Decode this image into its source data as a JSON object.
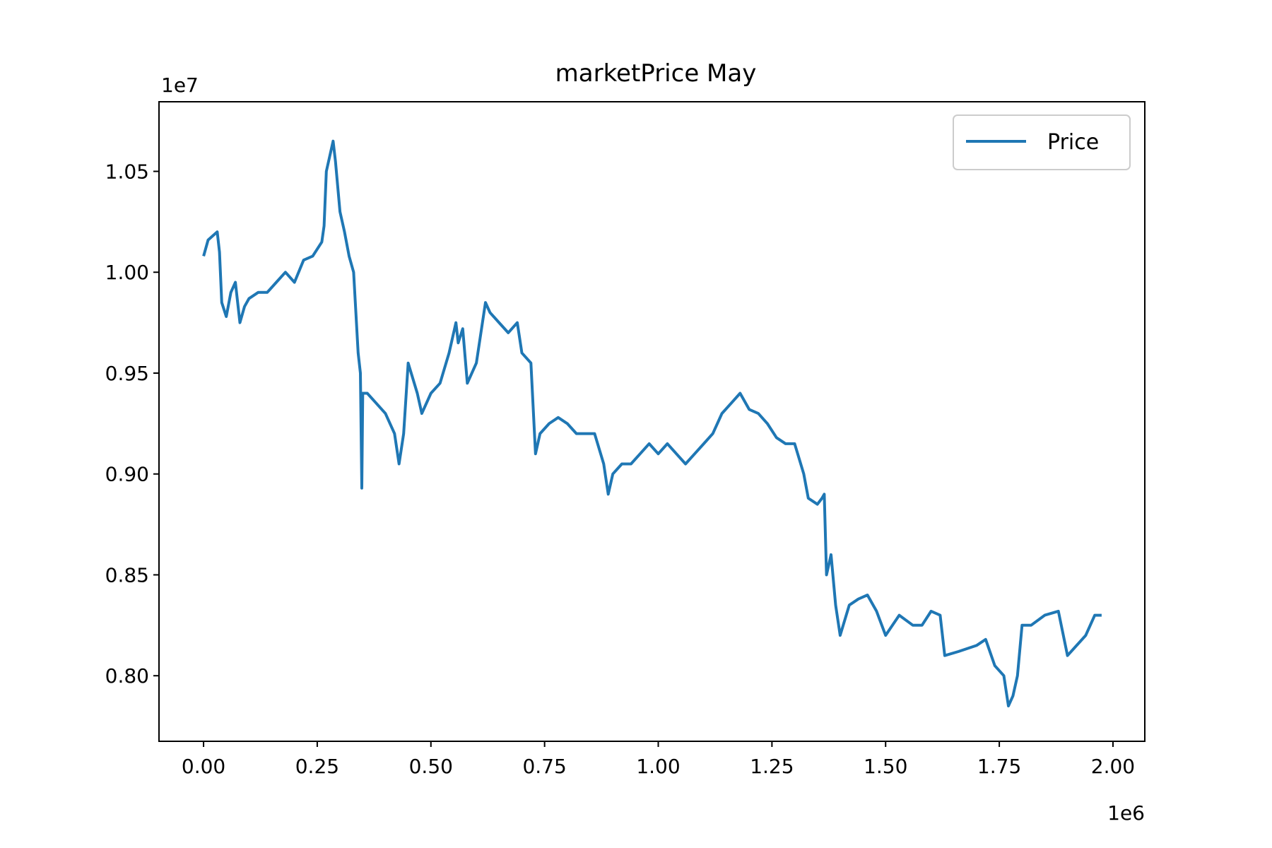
{
  "chart_data": {
    "type": "line",
    "title": "marketPrice May",
    "xlabel": "",
    "ylabel": "",
    "x_offset_label": "1e6",
    "y_offset_label": "1e7",
    "xlim": [
      -0.098,
      2.07
    ],
    "ylim": [
      0.7675,
      1.0845
    ],
    "x_ticks": [
      0.0,
      0.25,
      0.5,
      0.75,
      1.0,
      1.25,
      1.5,
      1.75,
      2.0
    ],
    "x_tick_labels": [
      "0.00",
      "0.25",
      "0.50",
      "0.75",
      "1.00",
      "1.25",
      "1.50",
      "1.75",
      "2.00"
    ],
    "y_ticks": [
      0.8,
      0.85,
      0.9,
      0.95,
      1.0,
      1.05
    ],
    "y_tick_labels": [
      "0.80",
      "0.85",
      "0.90",
      "0.95",
      "1.00",
      "1.05"
    ],
    "grid": false,
    "legend_position": "upper-right",
    "colors": {
      "series": "#1f77b4",
      "axes": "#000000",
      "background": "#ffffff"
    },
    "series": [
      {
        "name": "Price",
        "x": [
          0.0,
          0.01,
          0.02,
          0.03,
          0.035,
          0.04,
          0.05,
          0.06,
          0.07,
          0.08,
          0.09,
          0.1,
          0.12,
          0.14,
          0.16,
          0.18,
          0.2,
          0.22,
          0.24,
          0.26,
          0.265,
          0.27,
          0.28,
          0.285,
          0.29,
          0.3,
          0.31,
          0.32,
          0.33,
          0.335,
          0.34,
          0.345,
          0.348,
          0.35,
          0.36,
          0.38,
          0.4,
          0.42,
          0.43,
          0.44,
          0.45,
          0.47,
          0.48,
          0.5,
          0.52,
          0.54,
          0.555,
          0.56,
          0.57,
          0.58,
          0.6,
          0.62,
          0.63,
          0.65,
          0.67,
          0.69,
          0.7,
          0.72,
          0.73,
          0.74,
          0.76,
          0.78,
          0.8,
          0.82,
          0.86,
          0.88,
          0.89,
          0.9,
          0.92,
          0.94,
          0.96,
          0.98,
          1.0,
          1.02,
          1.04,
          1.06,
          1.08,
          1.1,
          1.12,
          1.14,
          1.16,
          1.18,
          1.2,
          1.22,
          1.24,
          1.26,
          1.28,
          1.3,
          1.32,
          1.33,
          1.35,
          1.36,
          1.365,
          1.37,
          1.38,
          1.39,
          1.4,
          1.42,
          1.44,
          1.46,
          1.48,
          1.5,
          1.53,
          1.56,
          1.58,
          1.6,
          1.62,
          1.63,
          1.66,
          1.7,
          1.72,
          1.74,
          1.76,
          1.77,
          1.78,
          1.79,
          1.8,
          1.82,
          1.85,
          1.88,
          1.9,
          1.92,
          1.94,
          1.95,
          1.96,
          1.975
        ],
        "values": [
          1.008,
          1.016,
          1.018,
          1.02,
          1.01,
          0.985,
          0.978,
          0.99,
          0.995,
          0.975,
          0.983,
          0.987,
          0.99,
          0.99,
          0.995,
          1.0,
          0.995,
          1.006,
          1.008,
          1.015,
          1.023,
          1.05,
          1.06,
          1.065,
          1.055,
          1.03,
          1.02,
          1.008,
          1.0,
          0.98,
          0.96,
          0.95,
          0.893,
          0.94,
          0.94,
          0.935,
          0.93,
          0.92,
          0.905,
          0.92,
          0.955,
          0.94,
          0.93,
          0.94,
          0.945,
          0.96,
          0.975,
          0.965,
          0.972,
          0.945,
          0.955,
          0.985,
          0.98,
          0.975,
          0.97,
          0.975,
          0.96,
          0.955,
          0.91,
          0.92,
          0.925,
          0.928,
          0.925,
          0.92,
          0.92,
          0.905,
          0.89,
          0.9,
          0.905,
          0.905,
          0.91,
          0.915,
          0.91,
          0.915,
          0.91,
          0.905,
          0.91,
          0.915,
          0.92,
          0.93,
          0.935,
          0.94,
          0.932,
          0.93,
          0.925,
          0.918,
          0.915,
          0.915,
          0.9,
          0.888,
          0.885,
          0.888,
          0.89,
          0.85,
          0.86,
          0.835,
          0.82,
          0.835,
          0.838,
          0.84,
          0.832,
          0.82,
          0.83,
          0.825,
          0.825,
          0.832,
          0.83,
          0.81,
          0.812,
          0.815,
          0.818,
          0.805,
          0.8,
          0.785,
          0.79,
          0.8,
          0.825,
          0.825,
          0.83,
          0.832,
          0.81,
          0.815,
          0.82,
          0.825,
          0.83,
          0.83
        ]
      }
    ]
  }
}
